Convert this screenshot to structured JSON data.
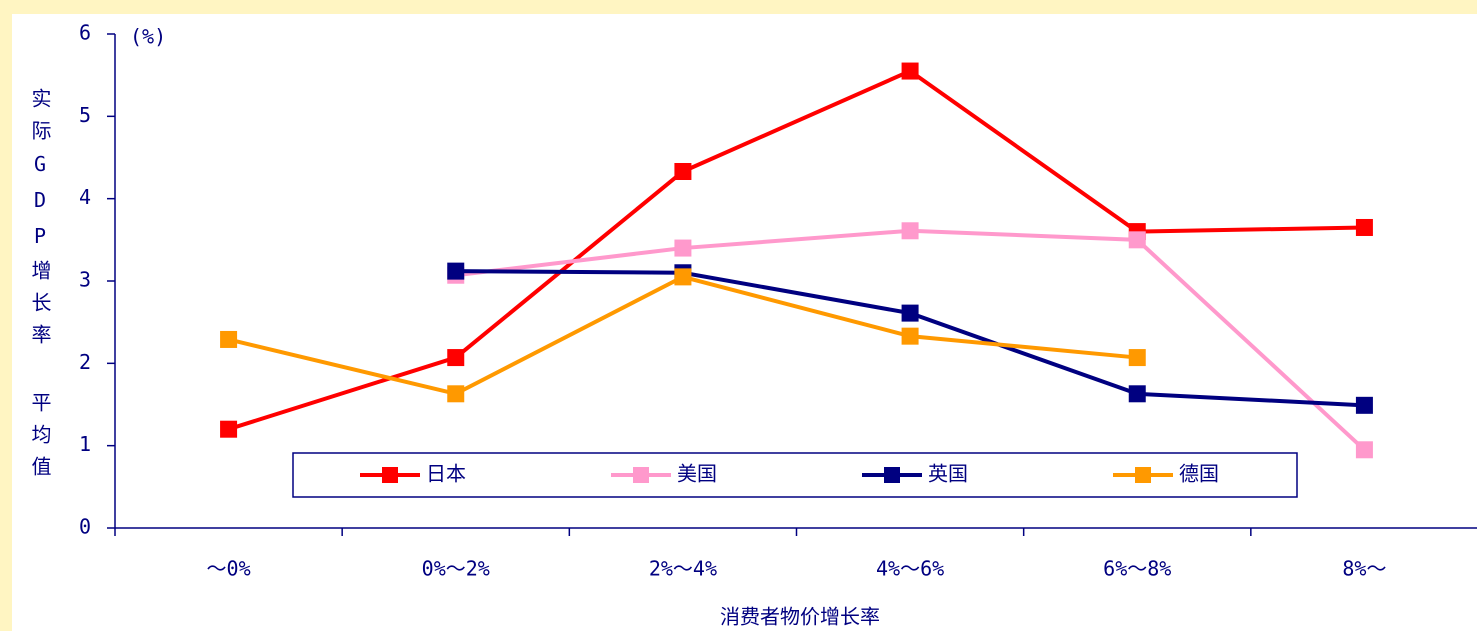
{
  "chart_data": {
    "type": "line",
    "unit": "(%)",
    "y_label": "实际GDP增长率 平均值",
    "x_label": "消费者物价增长率",
    "categories": [
      "～0%",
      "0%～2%",
      "2%～4%",
      "4%～6%",
      "6%～8%",
      "8%～"
    ],
    "ylim": [
      0,
      6
    ],
    "yticks": [
      0,
      1,
      2,
      3,
      4,
      5,
      6
    ],
    "series": [
      {
        "name": "日本",
        "color": "#ff0000",
        "values": [
          1.2,
          2.07,
          4.33,
          5.55,
          3.6,
          3.65
        ]
      },
      {
        "name": "美国",
        "color": "#ff99cc",
        "values": [
          null,
          3.07,
          3.4,
          3.61,
          3.5,
          0.95
        ]
      },
      {
        "name": "英国",
        "color": "#000080",
        "values": [
          null,
          3.12,
          3.1,
          2.61,
          1.63,
          1.49
        ]
      },
      {
        "name": "德国",
        "color": "#ff9900",
        "values": [
          2.29,
          1.63,
          3.05,
          2.33,
          2.07,
          null
        ]
      }
    ]
  }
}
